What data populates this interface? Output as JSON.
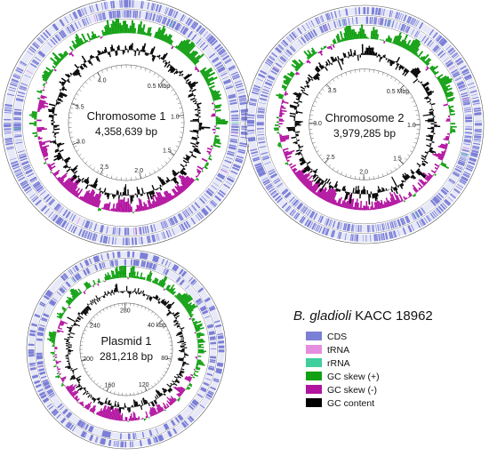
{
  "colors": {
    "cds": "#7b7fd6",
    "trna": "#e58ee0",
    "rrna": "#3fcf9c",
    "gc_skew_pos": "#12a012",
    "gc_skew_neg": "#b2139f",
    "gc_content": "#000000",
    "ring_line": "#555555"
  },
  "maps": [
    {
      "name": "Chromosome 1",
      "size": "4,358,639 bp",
      "ticks": [
        "0.5 Mbp",
        "1.0",
        "1.5",
        "2.0",
        "2.5",
        "3.0",
        "3.5",
        "4.0"
      ]
    },
    {
      "name": "Chromosome 2",
      "size": "3,979,285 bp",
      "ticks": [
        "0.5 Mbp",
        "1.0",
        "1.5",
        "2.0",
        "2.5",
        "3.0",
        "3.5"
      ]
    },
    {
      "name": "Plasmid 1",
      "size": "281,218 bp",
      "ticks": [
        "40 kbp",
        "80",
        "120",
        "160",
        "200",
        "240",
        "280"
      ]
    }
  ],
  "legend": {
    "title_italic": "B. gladioli",
    "title_rest": " KACC 18962",
    "items": [
      {
        "label": "CDS",
        "color_key": "cds"
      },
      {
        "label": "tRNA",
        "color_key": "trna"
      },
      {
        "label": "rRNA",
        "color_key": "rrna"
      },
      {
        "label": "GC skew (+)",
        "color_key": "gc_skew_pos"
      },
      {
        "label": "GC skew (-)",
        "color_key": "gc_skew_neg"
      },
      {
        "label": "GC content",
        "color_key": "gc_content"
      }
    ]
  }
}
